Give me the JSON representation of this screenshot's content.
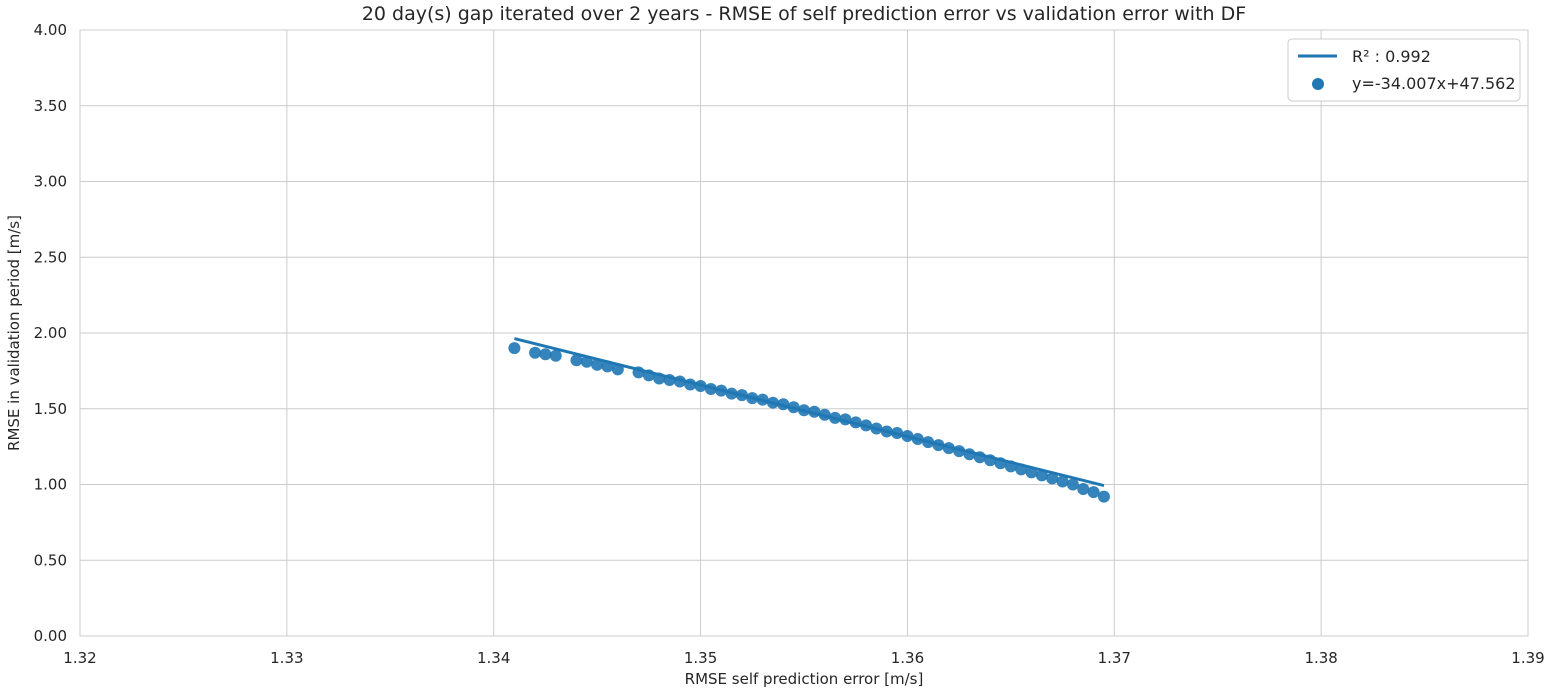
{
  "chart_data": {
    "type": "scatter",
    "title": "20 day(s) gap iterated over 2 years - RMSE of self prediction error vs validation error with DF",
    "xlabel": "RMSE self prediction error [m/s]",
    "ylabel": "RMSE in validation period [m/s]",
    "xlim": [
      1.32,
      1.39
    ],
    "ylim": [
      0.0,
      4.0
    ],
    "x_ticks": [
      1.32,
      1.33,
      1.34,
      1.35,
      1.36,
      1.37,
      1.38,
      1.39
    ],
    "x_tick_labels": [
      "1.32",
      "1.33",
      "1.34",
      "1.35",
      "1.36",
      "1.37",
      "1.38",
      "1.39"
    ],
    "y_ticks": [
      0.0,
      0.5,
      1.0,
      1.5,
      2.0,
      2.5,
      3.0,
      3.5,
      4.0
    ],
    "y_tick_labels": [
      "0.00",
      "0.50",
      "1.00",
      "1.50",
      "2.00",
      "2.50",
      "3.00",
      "3.50",
      "4.00"
    ],
    "grid": true,
    "legend_position": "top-right",
    "colors": {
      "series": "#1f77b4",
      "grid": "#cccccc",
      "axis": "#cccccc",
      "text": "#262626"
    },
    "series": [
      {
        "type": "line",
        "legend_label": "R² : 0.992",
        "x": [
          1.341,
          1.3695
        ],
        "y": [
          1.963,
          0.993
        ]
      },
      {
        "type": "scatter",
        "legend_label": "y=-34.007x+47.562",
        "x": [
          1.341,
          1.342,
          1.3425,
          1.343,
          1.344,
          1.3445,
          1.345,
          1.3455,
          1.346,
          1.347,
          1.3475,
          1.348,
          1.3485,
          1.349,
          1.3495,
          1.35,
          1.3505,
          1.351,
          1.3515,
          1.352,
          1.3525,
          1.353,
          1.3535,
          1.354,
          1.3545,
          1.355,
          1.3555,
          1.356,
          1.3565,
          1.357,
          1.3575,
          1.358,
          1.3585,
          1.359,
          1.3595,
          1.36,
          1.3605,
          1.361,
          1.3615,
          1.362,
          1.3625,
          1.363,
          1.3635,
          1.364,
          1.3645,
          1.365,
          1.3655,
          1.366,
          1.3665,
          1.367,
          1.3675,
          1.368,
          1.3685,
          1.369,
          1.3695
        ],
        "y": [
          1.9,
          1.87,
          1.86,
          1.85,
          1.82,
          1.81,
          1.79,
          1.78,
          1.76,
          1.74,
          1.72,
          1.7,
          1.69,
          1.68,
          1.66,
          1.65,
          1.63,
          1.62,
          1.6,
          1.59,
          1.57,
          1.56,
          1.54,
          1.53,
          1.51,
          1.49,
          1.48,
          1.46,
          1.44,
          1.43,
          1.41,
          1.39,
          1.37,
          1.35,
          1.34,
          1.32,
          1.3,
          1.28,
          1.26,
          1.24,
          1.22,
          1.2,
          1.18,
          1.16,
          1.14,
          1.12,
          1.1,
          1.08,
          1.06,
          1.04,
          1.02,
          1.0,
          0.97,
          0.95,
          0.92
        ]
      }
    ]
  }
}
